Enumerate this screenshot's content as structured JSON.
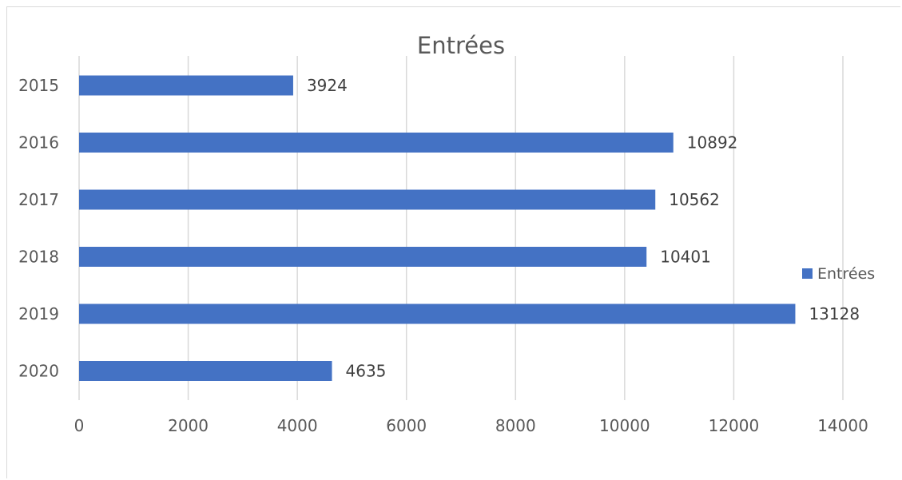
{
  "chart_data": {
    "type": "bar",
    "orientation": "horizontal",
    "title": "Entrées",
    "xlabel": "",
    "ylabel": "",
    "categories": [
      "2015",
      "2016",
      "2017",
      "2018",
      "2019",
      "2020"
    ],
    "series": [
      {
        "name": "Entrées",
        "values": [
          3924,
          10892,
          10562,
          10401,
          13128,
          4635
        ],
        "color": "#4472c4"
      }
    ],
    "xlim": [
      0,
      14000
    ],
    "xticks": [
      "0",
      "2000",
      "4000",
      "6000",
      "8000",
      "10000",
      "12000",
      "14000"
    ],
    "grid": "vertical",
    "legend": "right",
    "data_labels": true
  }
}
